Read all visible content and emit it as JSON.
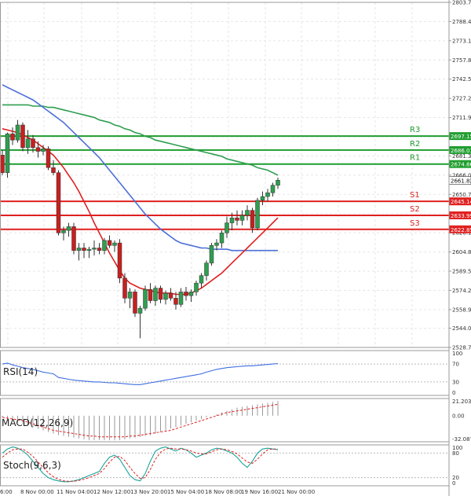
{
  "chart_data": {
    "type": "candlestick",
    "title": "",
    "price_axis": {
      "ylim": [
        2528.75,
        2803.7
      ],
      "ticks": [
        "2803.70",
        "2788.40",
        "2773.10",
        "2757.80",
        "2742.50",
        "2727.20",
        "2711.90",
        "2696.60",
        "2681.30",
        "2666.00",
        "2650.70",
        "2635.40",
        "2620.10",
        "2604.80",
        "2589.50",
        "2574.20",
        "2558.90",
        "2544.05",
        "2528.75"
      ]
    },
    "x_ticks": [
      "6:00",
      "8 Nov 00:00",
      "11 Nov 04:00",
      "12 Nov 12:00",
      "13 Nov 20:00",
      "15 Nov 04:00",
      "18 Nov 08:00",
      "19 Nov 16:00",
      "21 Nov 00:00"
    ],
    "candles": [
      {
        "o": 2682,
        "h": 2686,
        "l": 2666,
        "c": 2668
      },
      {
        "o": 2668,
        "h": 2700,
        "l": 2664,
        "c": 2699
      },
      {
        "o": 2699,
        "h": 2704,
        "l": 2690,
        "c": 2694
      },
      {
        "o": 2694,
        "h": 2710,
        "l": 2692,
        "c": 2706
      },
      {
        "o": 2706,
        "h": 2708,
        "l": 2685,
        "c": 2688
      },
      {
        "o": 2688,
        "h": 2702,
        "l": 2683,
        "c": 2695
      },
      {
        "o": 2695,
        "h": 2698,
        "l": 2684,
        "c": 2688
      },
      {
        "o": 2688,
        "h": 2693,
        "l": 2680,
        "c": 2685
      },
      {
        "o": 2685,
        "h": 2690,
        "l": 2682,
        "c": 2687
      },
      {
        "o": 2687,
        "h": 2689,
        "l": 2670,
        "c": 2672
      },
      {
        "o": 2672,
        "h": 2678,
        "l": 2666,
        "c": 2668
      },
      {
        "o": 2668,
        "h": 2670,
        "l": 2618,
        "c": 2620
      },
      {
        "o": 2620,
        "h": 2625,
        "l": 2614,
        "c": 2622
      },
      {
        "o": 2622,
        "h": 2628,
        "l": 2617,
        "c": 2625
      },
      {
        "o": 2625,
        "h": 2628,
        "l": 2603,
        "c": 2606
      },
      {
        "o": 2606,
        "h": 2612,
        "l": 2598,
        "c": 2608
      },
      {
        "o": 2608,
        "h": 2612,
        "l": 2600,
        "c": 2606
      },
      {
        "o": 2606,
        "h": 2609,
        "l": 2600,
        "c": 2607
      },
      {
        "o": 2607,
        "h": 2614,
        "l": 2602,
        "c": 2608
      },
      {
        "o": 2608,
        "h": 2612,
        "l": 2603,
        "c": 2606
      },
      {
        "o": 2606,
        "h": 2616,
        "l": 2603,
        "c": 2614
      },
      {
        "o": 2614,
        "h": 2618,
        "l": 2608,
        "c": 2610
      },
      {
        "o": 2610,
        "h": 2614,
        "l": 2605,
        "c": 2612
      },
      {
        "o": 2612,
        "h": 2615,
        "l": 2580,
        "c": 2584
      },
      {
        "o": 2584,
        "h": 2588,
        "l": 2564,
        "c": 2568
      },
      {
        "o": 2568,
        "h": 2576,
        "l": 2560,
        "c": 2573
      },
      {
        "o": 2573,
        "h": 2575,
        "l": 2553,
        "c": 2556
      },
      {
        "o": 2556,
        "h": 2562,
        "l": 2536,
        "c": 2560
      },
      {
        "o": 2560,
        "h": 2578,
        "l": 2558,
        "c": 2575
      },
      {
        "o": 2575,
        "h": 2580,
        "l": 2564,
        "c": 2566
      },
      {
        "o": 2566,
        "h": 2578,
        "l": 2562,
        "c": 2576
      },
      {
        "o": 2576,
        "h": 2578,
        "l": 2564,
        "c": 2567
      },
      {
        "o": 2567,
        "h": 2574,
        "l": 2563,
        "c": 2572
      },
      {
        "o": 2572,
        "h": 2576,
        "l": 2566,
        "c": 2568
      },
      {
        "o": 2568,
        "h": 2573,
        "l": 2559,
        "c": 2563
      },
      {
        "o": 2563,
        "h": 2576,
        "l": 2561,
        "c": 2573
      },
      {
        "o": 2573,
        "h": 2577,
        "l": 2566,
        "c": 2570
      },
      {
        "o": 2570,
        "h": 2575,
        "l": 2565,
        "c": 2573
      },
      {
        "o": 2573,
        "h": 2582,
        "l": 2570,
        "c": 2580
      },
      {
        "o": 2580,
        "h": 2588,
        "l": 2576,
        "c": 2586
      },
      {
        "o": 2586,
        "h": 2598,
        "l": 2582,
        "c": 2596
      },
      {
        "o": 2596,
        "h": 2612,
        "l": 2594,
        "c": 2610
      },
      {
        "o": 2610,
        "h": 2615,
        "l": 2606,
        "c": 2612
      },
      {
        "o": 2612,
        "h": 2622,
        "l": 2608,
        "c": 2620
      },
      {
        "o": 2620,
        "h": 2633,
        "l": 2616,
        "c": 2628
      },
      {
        "o": 2628,
        "h": 2636,
        "l": 2622,
        "c": 2632
      },
      {
        "o": 2632,
        "h": 2638,
        "l": 2626,
        "c": 2630
      },
      {
        "o": 2630,
        "h": 2638,
        "l": 2626,
        "c": 2634
      },
      {
        "o": 2634,
        "h": 2642,
        "l": 2630,
        "c": 2638
      },
      {
        "o": 2638,
        "h": 2640,
        "l": 2620,
        "c": 2624
      },
      {
        "o": 2624,
        "h": 2648,
        "l": 2622,
        "c": 2646
      },
      {
        "o": 2646,
        "h": 2653,
        "l": 2642,
        "c": 2649
      },
      {
        "o": 2649,
        "h": 2655,
        "l": 2645,
        "c": 2652
      },
      {
        "o": 2652,
        "h": 2660,
        "l": 2649,
        "c": 2658
      },
      {
        "o": 2658,
        "h": 2664,
        "l": 2655,
        "c": 2662
      }
    ],
    "series": [
      {
        "name": "green MA",
        "color": "#2e9e4f",
        "values": [
          2722,
          2722,
          2722,
          2722,
          2722,
          2722,
          2721,
          2721,
          2721,
          2720,
          2720,
          2719,
          2718,
          2717,
          2716,
          2715,
          2714,
          2713,
          2712,
          2710,
          2709,
          2708,
          2706,
          2705,
          2703,
          2702,
          2700,
          2699,
          2697,
          2696,
          2694,
          2693,
          2692,
          2691,
          2690,
          2689,
          2688,
          2687,
          2686,
          2685,
          2684,
          2683,
          2682,
          2681,
          2679,
          2678,
          2677,
          2676,
          2675,
          2674,
          2672,
          2671,
          2670,
          2668,
          2666
        ]
      },
      {
        "name": "blue MA",
        "color": "#4c6fd9",
        "values": [
          2738,
          2736,
          2734,
          2732,
          2730,
          2728,
          2726,
          2723,
          2720,
          2717,
          2714,
          2711,
          2708,
          2704,
          2700,
          2696,
          2692,
          2688,
          2684,
          2680,
          2675,
          2670,
          2665,
          2660,
          2655,
          2650,
          2645,
          2640,
          2635,
          2631,
          2627,
          2623,
          2620,
          2617,
          2614,
          2612,
          2611,
          2610,
          2609,
          2608,
          2608,
          2607,
          2607,
          2607,
          2607,
          2606,
          2606,
          2606,
          2606,
          2606,
          2606,
          2606,
          2606,
          2606,
          2606
        ]
      },
      {
        "name": "red MA",
        "color": "#e02020",
        "values": [
          2703,
          2702,
          2701,
          2700,
          2698,
          2696,
          2694,
          2691,
          2688,
          2685,
          2682,
          2677,
          2672,
          2666,
          2660,
          2653,
          2645,
          2637,
          2628,
          2620,
          2612,
          2604,
          2597,
          2590,
          2584,
          2580,
          2578,
          2576,
          2575,
          2574,
          2573,
          2572,
          2572,
          2572,
          2571,
          2571,
          2571,
          2572,
          2574,
          2576,
          2579,
          2582,
          2585,
          2588,
          2592,
          2596,
          2600,
          2604,
          2608,
          2612,
          2616,
          2620,
          2624,
          2628,
          2632
        ]
      }
    ],
    "levels": [
      {
        "name": "R3",
        "value": 2697.15,
        "tag": "2697.15",
        "color": "#1f9e2f"
      },
      {
        "name": "R2",
        "value": 2686.01,
        "tag": "2686.01",
        "color": "#1f9e2f"
      },
      {
        "name": "R1",
        "value": 2674.86,
        "tag": "2674.86",
        "color": "#1f9e2f"
      },
      {
        "name": "S1",
        "value": 2645.14,
        "tag": "2645.14",
        "color": "#e02020"
      },
      {
        "name": "S2",
        "value": 2633.99,
        "tag": "2633.99",
        "color": "#e02020"
      },
      {
        "name": "S3",
        "value": 2622.85,
        "tag": "2622.85",
        "color": "#e02020"
      }
    ],
    "current_price": {
      "value": 2661.82,
      "tag": "2661.82"
    },
    "indicators": {
      "rsi": {
        "label": "RSI(14)",
        "ticks": [
          "100",
          "70",
          "30",
          "0"
        ],
        "ylim": [
          0,
          100
        ],
        "values": [
          70,
          72,
          68,
          65,
          62,
          60,
          58,
          55,
          52,
          50,
          48,
          40,
          38,
          36,
          34,
          33,
          32,
          31,
          30,
          30,
          29,
          28,
          28,
          27,
          26,
          25,
          24,
          24,
          26,
          28,
          30,
          32,
          34,
          36,
          38,
          40,
          42,
          44,
          46,
          48,
          52,
          55,
          58,
          60,
          62,
          63,
          64,
          65,
          66,
          66,
          67,
          68,
          69,
          70,
          71
        ]
      },
      "macd": {
        "label": "MACD(12,26,9)",
        "ticks": [
          "21.203",
          "0.00",
          "-32.087"
        ],
        "ylim": [
          -32.087,
          21.203
        ],
        "histogram": [
          -2,
          -4,
          -6,
          -8,
          -10,
          -12,
          -14,
          -16,
          -18,
          -20,
          -22,
          -24,
          -25,
          -26,
          -27,
          -28,
          -29,
          -30,
          -30,
          -30,
          -30,
          -30,
          -30,
          -30,
          -29,
          -28,
          -27,
          -26,
          -25,
          -24,
          -22,
          -20,
          -18,
          -16,
          -14,
          -12,
          -10,
          -8,
          -6,
          -4,
          -2,
          0,
          2,
          4,
          6,
          8,
          10,
          11,
          12,
          13,
          14,
          15,
          16,
          17,
          18
        ],
        "signal": [
          -2,
          -3,
          -4,
          -5,
          -6,
          -8,
          -10,
          -12,
          -14,
          -16,
          -18,
          -19,
          -20,
          -21,
          -22,
          -23,
          -24,
          -25,
          -25,
          -26,
          -26,
          -26,
          -26,
          -26,
          -26,
          -25,
          -25,
          -24,
          -23,
          -22,
          -21,
          -20,
          -19,
          -18,
          -16,
          -14,
          -12,
          -10,
          -8,
          -6,
          -4,
          -2,
          0,
          2,
          4,
          5,
          6,
          7,
          8,
          9,
          10,
          11,
          12,
          13,
          14
        ]
      },
      "stoch": {
        "label": "Stoch(9,6,3)",
        "ticks": [
          "100",
          "80",
          "20",
          "0"
        ],
        "ylim": [
          0,
          100
        ],
        "k": [
          80,
          90,
          95,
          92,
          85,
          75,
          60,
          45,
          30,
          20,
          15,
          12,
          10,
          10,
          12,
          15,
          20,
          25,
          30,
          35,
          55,
          70,
          75,
          65,
          45,
          25,
          15,
          12,
          30,
          60,
          85,
          92,
          95,
          90,
          85,
          92,
          88,
          80,
          70,
          75,
          80,
          88,
          92,
          90,
          85,
          80,
          70,
          55,
          45,
          60,
          80,
          90,
          92,
          90,
          88
        ],
        "d": [
          70,
          80,
          88,
          90,
          90,
          82,
          72,
          58,
          45,
          32,
          22,
          16,
          12,
          11,
          11,
          13,
          16,
          20,
          25,
          30,
          42,
          58,
          70,
          72,
          62,
          45,
          30,
          18,
          20,
          40,
          65,
          82,
          90,
          92,
          90,
          90,
          88,
          85,
          80,
          78,
          78,
          83,
          88,
          90,
          88,
          84,
          78,
          68,
          58,
          55,
          65,
          78,
          88,
          90,
          90
        ]
      }
    }
  }
}
